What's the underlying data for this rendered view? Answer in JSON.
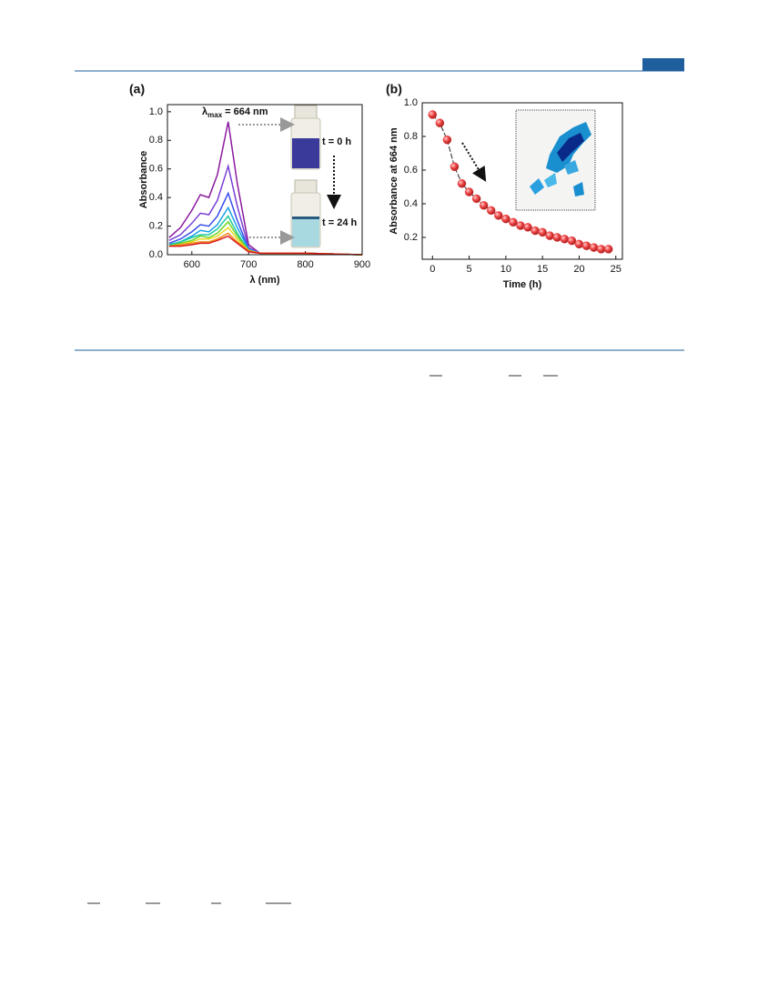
{
  "chart_data": [
    {
      "type": "line",
      "title": "(a)",
      "xlabel": "λ (nm)",
      "ylabel": "Absorbance",
      "annotations": {
        "symbol": "λ",
        "subscript": "max",
        "text": "= 664 nm",
        "start": "t = 0 h",
        "end": "t = 24 h"
      },
      "x": [
        560,
        580,
        600,
        615,
        630,
        645,
        664,
        680,
        700,
        720,
        750,
        800,
        900
      ],
      "series": [
        {
          "color": "#8b1a9e",
          "values": [
            0.12,
            0.19,
            0.31,
            0.42,
            0.4,
            0.56,
            0.93,
            0.5,
            0.07,
            0.01,
            0.01,
            0.01,
            0
          ]
        },
        {
          "color": "#7a3fd6",
          "values": [
            0.1,
            0.14,
            0.22,
            0.29,
            0.28,
            0.38,
            0.62,
            0.34,
            0.05,
            0.01,
            0.01,
            0.01,
            0
          ]
        },
        {
          "color": "#3a4de8",
          "values": [
            0.08,
            0.11,
            0.16,
            0.21,
            0.2,
            0.27,
            0.43,
            0.24,
            0.04,
            0.01,
            0.01,
            0.01,
            0
          ]
        },
        {
          "color": "#1aa0e8",
          "values": [
            0.07,
            0.09,
            0.13,
            0.17,
            0.16,
            0.21,
            0.33,
            0.19,
            0.04,
            0.01,
            0.01,
            0.01,
            0
          ]
        },
        {
          "color": "#18c8a0",
          "values": [
            0.07,
            0.09,
            0.12,
            0.14,
            0.14,
            0.18,
            0.27,
            0.15,
            0.03,
            0.01,
            0.01,
            0.01,
            0
          ]
        },
        {
          "color": "#6ad424",
          "values": [
            0.06,
            0.08,
            0.1,
            0.13,
            0.12,
            0.15,
            0.23,
            0.13,
            0.03,
            0.01,
            0.01,
            0.01,
            0
          ]
        },
        {
          "color": "#e8d820",
          "values": [
            0.06,
            0.07,
            0.09,
            0.11,
            0.11,
            0.13,
            0.19,
            0.11,
            0.03,
            0.01,
            0.01,
            0.01,
            0
          ]
        },
        {
          "color": "#f28a18",
          "values": [
            0.06,
            0.07,
            0.08,
            0.09,
            0.09,
            0.11,
            0.15,
            0.09,
            0.03,
            0.01,
            0.01,
            0.01,
            0
          ]
        },
        {
          "color": "#d81818",
          "values": [
            0.06,
            0.06,
            0.07,
            0.08,
            0.08,
            0.1,
            0.13,
            0.08,
            0.02,
            0.01,
            0.01,
            0.01,
            0
          ]
        }
      ],
      "xlim": [
        557,
        900
      ],
      "xticks": [
        600,
        700,
        800,
        900
      ],
      "ylim": [
        0,
        1.05
      ],
      "yticks": [
        {
          "value": 0,
          "label": "0.0"
        },
        0.2,
        0.4,
        0.6,
        0.8,
        {
          "value": 1,
          "label": "1.0"
        }
      ]
    },
    {
      "type": "scatter",
      "title": "(b)",
      "xlabel": "Time (h)",
      "ylabel": "Absorbance at 664 nm",
      "color": "#e83a3a",
      "x": [
        0,
        1,
        2,
        3,
        4,
        5,
        6,
        7,
        8,
        9,
        10,
        11,
        12,
        13,
        14,
        15,
        16,
        17,
        18,
        19,
        20,
        21,
        22,
        23,
        24
      ],
      "values": [
        0.93,
        0.88,
        0.78,
        0.62,
        0.52,
        0.47,
        0.43,
        0.39,
        0.36,
        0.33,
        0.31,
        0.29,
        0.27,
        0.26,
        0.24,
        0.23,
        0.21,
        0.2,
        0.19,
        0.18,
        0.16,
        0.15,
        0.14,
        0.13,
        0.13
      ],
      "xlim": [
        -1.4,
        25.9
      ],
      "xticks": [
        0,
        5,
        10,
        15,
        20,
        25
      ],
      "ylim": [
        0.07,
        1.0
      ],
      "yticks": [
        0.2,
        0.4,
        0.6,
        0.8,
        {
          "value": 1,
          "label": "1.0"
        }
      ]
    }
  ]
}
